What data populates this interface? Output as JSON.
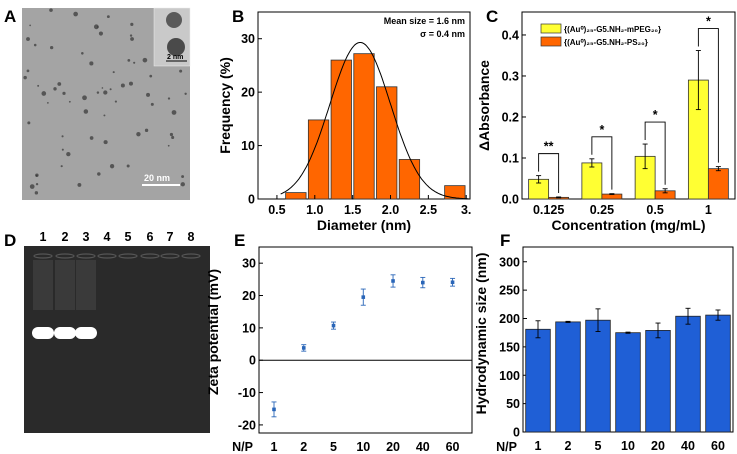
{
  "panel_labels": [
    "A",
    "B",
    "C",
    "D",
    "E",
    "F"
  ],
  "tem": {
    "scale_bar": "20 nm",
    "inset_scale_bar": "2 nm"
  },
  "gel": {
    "lanes": [
      "1",
      "2",
      "3",
      "4",
      "5",
      "6",
      "7",
      "8"
    ],
    "bright_bands_lanes": [
      1,
      2,
      3
    ]
  },
  "colors": {
    "orange": "#ff6600",
    "yellow": "#ffff33",
    "blue": "#1f5fd6",
    "point": "#2a66b8"
  },
  "chart_data": [
    {
      "panel": "B",
      "type": "bar",
      "x": [
        0.75,
        1.05,
        1.35,
        1.65,
        1.95,
        2.25,
        2.85
      ],
      "values": [
        1.2,
        14.8,
        26.0,
        27.2,
        21.0,
        7.4,
        2.5
      ],
      "fit": {
        "type": "gaussian",
        "mean": 1.6,
        "sigma": 0.4,
        "peak": 29.3
      },
      "annotations": [
        "Mean size = 1.6 nm",
        "σ = 0.4 nm"
      ],
      "xlabel": "Diameter (nm)",
      "ylabel": "Frequency (%)",
      "xticks": [
        "0.5",
        "1.0",
        "1.5",
        "2.0",
        "2.5",
        "3."
      ],
      "xtick_values": [
        0.5,
        1.0,
        1.5,
        2.0,
        2.5,
        3.0
      ],
      "yticks": [
        "0",
        "10",
        "20",
        "30"
      ],
      "ytick_values": [
        0,
        10,
        20,
        30
      ],
      "xlim": [
        0.25,
        3.05
      ],
      "ylim": [
        0,
        35
      ],
      "grid": false
    },
    {
      "panel": "C",
      "type": "bar",
      "categories": [
        "0.125",
        "0.25",
        "0.5",
        "1"
      ],
      "series": [
        {
          "name": "{(Au⁰)₂₅-G5.NH₂-mPEG₂₀}",
          "values": [
            0.048,
            0.088,
            0.104,
            0.29
          ],
          "errors": [
            0.009,
            0.01,
            0.03,
            0.072
          ]
        },
        {
          "name": "{(Au⁰)₂₅-G5.NH₂-PS₂₀}",
          "values": [
            0.004,
            0.012,
            0.02,
            0.074
          ],
          "errors": [
            0.001,
            0.001,
            0.005,
            0.005
          ]
        }
      ],
      "significance": [
        "**",
        "*",
        "*",
        "*"
      ],
      "xlabel": "Concentration (mg/mL)",
      "ylabel": "ΔAbsorbance",
      "yticks": [
        "0.0",
        "0.1",
        "0.2",
        "0.3",
        "0.4"
      ],
      "ytick_values": [
        0,
        0.1,
        0.2,
        0.3,
        0.4
      ],
      "ylim": [
        0,
        0.456
      ],
      "legend": "top-left",
      "grid": false
    },
    {
      "panel": "E",
      "type": "scatter",
      "categories": [
        "1",
        "2",
        "5",
        "10",
        "20",
        "40",
        "60"
      ],
      "values": [
        -15.2,
        3.8,
        10.7,
        19.5,
        24.5,
        24.0,
        24.1
      ],
      "errors": [
        2.3,
        1.0,
        1.1,
        2.5,
        1.9,
        1.6,
        1.2
      ],
      "xlabel": "N/P",
      "ylabel": "Zeta potential (mV)",
      "yticks": [
        "-20",
        "-10",
        "0",
        "10",
        "20",
        "30"
      ],
      "ytick_values": [
        -20,
        -10,
        0,
        10,
        20,
        30
      ],
      "ylim": [
        -22.5,
        35
      ],
      "zero_line": true,
      "grid": false
    },
    {
      "panel": "F",
      "type": "bar",
      "categories": [
        "1",
        "2",
        "5",
        "10",
        "20",
        "40",
        "60"
      ],
      "values": [
        181,
        194,
        197,
        175,
        179,
        204,
        206
      ],
      "errors": [
        15,
        1,
        20,
        1,
        13,
        14,
        9
      ],
      "xlabel": "N/P",
      "ylabel": "Hydrodynamic size (nm)",
      "yticks": [
        "0",
        "50",
        "100",
        "150",
        "200",
        "250",
        "300"
      ],
      "ytick_values": [
        0,
        50,
        100,
        150,
        200,
        250,
        300
      ],
      "ylim": [
        0,
        326
      ],
      "grid": false
    }
  ]
}
